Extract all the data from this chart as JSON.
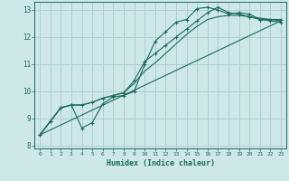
{
  "xlabel": "Humidex (Indice chaleur)",
  "ylabel": "",
  "xlim": [
    -0.5,
    23.5
  ],
  "ylim": [
    7.9,
    13.3
  ],
  "yticks": [
    8,
    9,
    10,
    11,
    12,
    13
  ],
  "xticks": [
    0,
    1,
    2,
    3,
    4,
    5,
    6,
    7,
    8,
    9,
    10,
    11,
    12,
    13,
    14,
    15,
    16,
    17,
    18,
    19,
    20,
    21,
    22,
    23
  ],
  "bg_color": "#cde8e5",
  "grid_color": "#aecfcc",
  "line_color": "#1a6b5a",
  "lines": [
    {
      "x": [
        0,
        1,
        2,
        3,
        4,
        5,
        6,
        7,
        8,
        9,
        10,
        11,
        12,
        13,
        14,
        15,
        16,
        17,
        18,
        19,
        20,
        21,
        22,
        23
      ],
      "y": [
        8.4,
        8.9,
        9.4,
        9.5,
        8.65,
        8.85,
        9.55,
        9.8,
        9.85,
        10.0,
        11.0,
        11.85,
        12.2,
        12.55,
        12.65,
        13.05,
        13.1,
        13.0,
        12.85,
        12.9,
        12.85,
        12.65,
        12.65,
        12.65
      ],
      "marker": true
    },
    {
      "x": [
        0,
        1,
        2,
        3,
        4,
        5,
        6,
        7,
        8,
        9,
        10,
        11,
        12,
        13,
        14,
        15,
        16,
        17,
        18,
        19,
        20,
        21,
        22,
        23
      ],
      "y": [
        8.4,
        8.9,
        9.4,
        9.5,
        9.5,
        9.6,
        9.75,
        9.85,
        9.95,
        10.4,
        11.1,
        11.4,
        11.7,
        12.0,
        12.3,
        12.6,
        12.9,
        13.1,
        12.9,
        12.85,
        12.75,
        12.65,
        12.6,
        12.55
      ],
      "marker": true
    },
    {
      "x": [
        0,
        1,
        2,
        3,
        4,
        5,
        6,
        7,
        8,
        9,
        10,
        11,
        12,
        13,
        14,
        15,
        16,
        17,
        18,
        19,
        20,
        21,
        22,
        23
      ],
      "y": [
        8.4,
        8.9,
        9.4,
        9.5,
        9.5,
        9.6,
        9.75,
        9.85,
        9.95,
        10.3,
        10.75,
        11.05,
        11.4,
        11.75,
        12.1,
        12.4,
        12.65,
        12.75,
        12.8,
        12.8,
        12.75,
        12.7,
        12.65,
        12.6
      ],
      "marker": false
    },
    {
      "x": [
        0,
        23
      ],
      "y": [
        8.4,
        12.6
      ],
      "marker": false
    }
  ]
}
